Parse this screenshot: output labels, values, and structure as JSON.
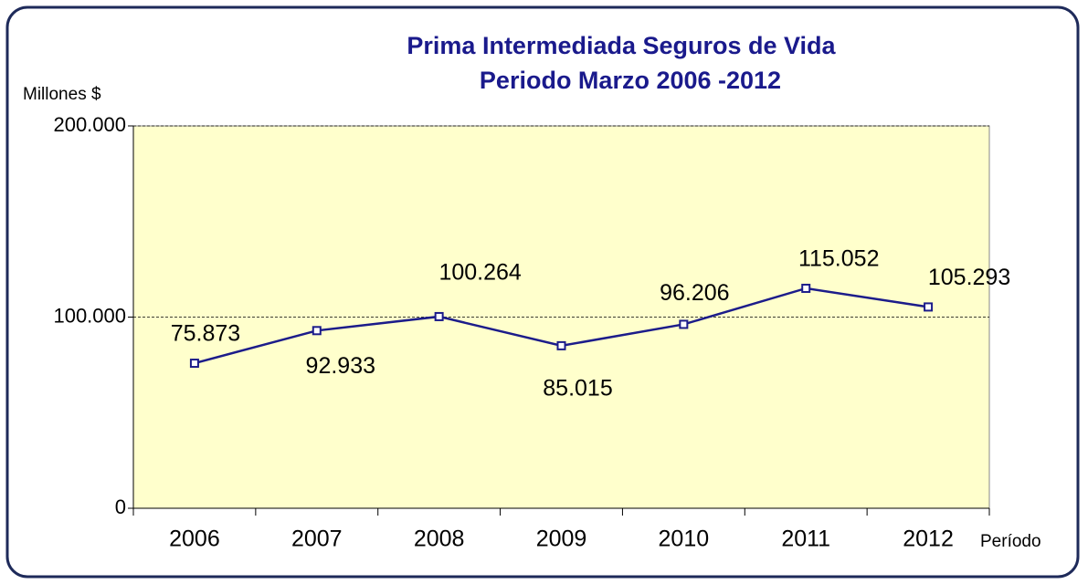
{
  "chart_data": {
    "type": "line",
    "title": "Prima Intermediada Seguros de Vida",
    "subtitle": "Periodo Marzo 2006 -2012",
    "y_axis_label": "Millones $",
    "x_axis_label": "Período",
    "categories": [
      "2006",
      "2007",
      "2008",
      "2009",
      "2010",
      "2011",
      "2012"
    ],
    "series": [
      {
        "name": "Prima Intermediada",
        "color": "#1c1c8a",
        "values": [
          75873,
          92933,
          100264,
          85015,
          96206,
          115052,
          105293
        ],
        "value_labels": [
          "75.873",
          "92.933",
          "100.264",
          "85.015",
          "96.206",
          "115.052",
          "105.293"
        ]
      }
    ],
    "ylim": [
      0,
      200000
    ],
    "yticks": [
      {
        "value": 0,
        "label": "0"
      },
      {
        "value": 100000,
        "label": "100.000"
      },
      {
        "value": 200000,
        "label": "200.000"
      }
    ],
    "grid": true,
    "plot_background": "#ffffcc"
  }
}
